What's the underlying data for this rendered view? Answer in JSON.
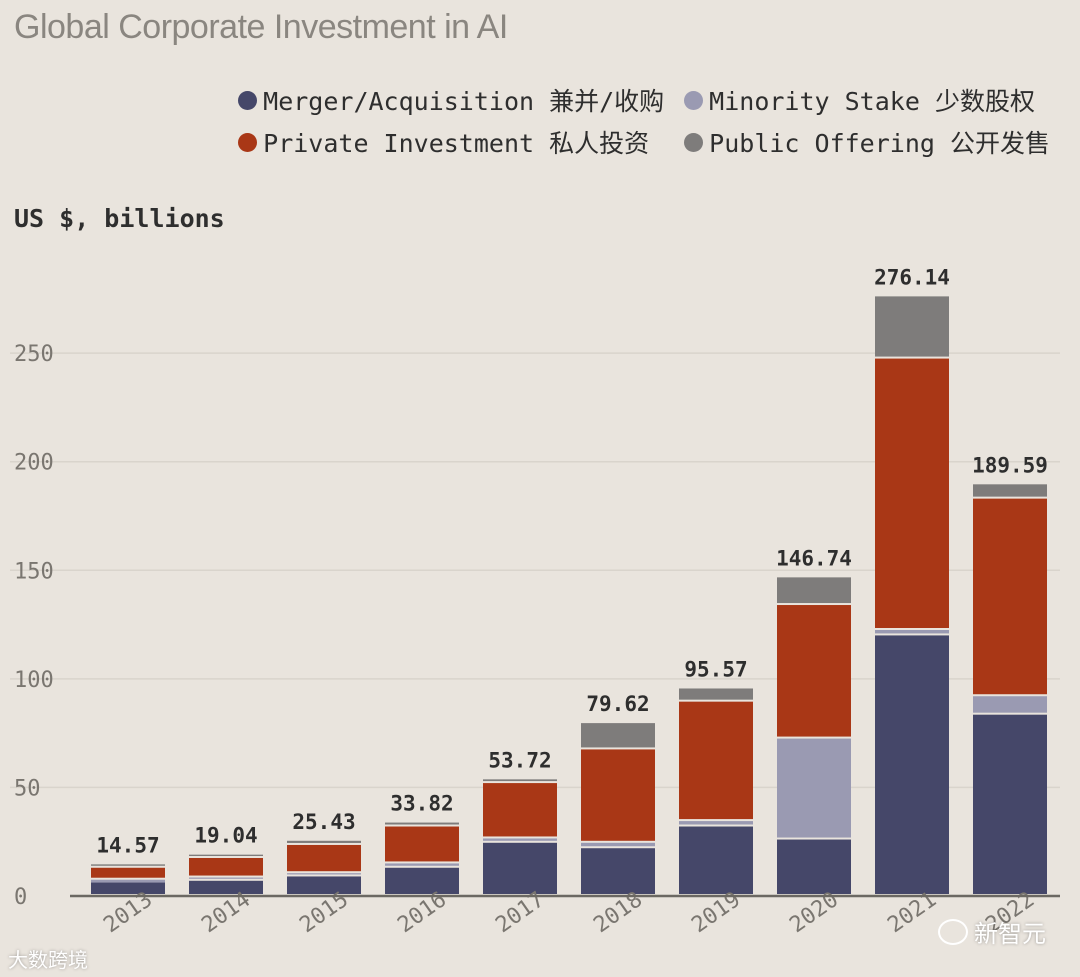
{
  "chart_data": {
    "type": "bar",
    "stacked": true,
    "title": "Global Corporate Investment in AI",
    "ylabel": "US $, billions",
    "xlabel": "",
    "ylim": [
      0,
      280
    ],
    "yticks": [
      0,
      50,
      100,
      150,
      200,
      250
    ],
    "categories": [
      "2013",
      "2014",
      "2015",
      "2016",
      "2017",
      "2018",
      "2019",
      "2020",
      "2021",
      "2022"
    ],
    "totals": [
      14.57,
      19.04,
      25.43,
      33.82,
      53.72,
      79.62,
      95.57,
      146.74,
      276.14,
      189.59
    ],
    "totals_labels": [
      "14.57",
      "19.04",
      "25.43",
      "33.82",
      "53.72",
      "79.62",
      "95.57",
      "146.74",
      "276.14",
      "189.59"
    ],
    "series": [
      {
        "name": "Merger/Acquisition 兼并/收购",
        "color": "#454769",
        "values": [
          6.2,
          7.0,
          9.0,
          13.0,
          24.5,
          22.0,
          32.0,
          26.0,
          120.0,
          83.5
        ]
      },
      {
        "name": "Minority Stake 少数股权",
        "color": "#9a9ab2",
        "values": [
          1.3,
          1.5,
          1.5,
          2.0,
          2.0,
          2.5,
          2.5,
          46.5,
          2.5,
          8.5
        ]
      },
      {
        "name": "Private Investment 私人投资",
        "color": "#a93716",
        "values": [
          5.5,
          9.0,
          13.0,
          17.0,
          25.5,
          43.0,
          55.0,
          61.5,
          125.0,
          91.0
        ]
      },
      {
        "name": "Public Offering 公开发售",
        "color": "#7e7c7b",
        "values": [
          1.57,
          1.54,
          1.93,
          1.82,
          1.72,
          12.12,
          6.07,
          12.74,
          28.64,
          6.59
        ]
      }
    ]
  },
  "legend": [
    {
      "label": "Merger/Acquisition 兼并/收购",
      "color": "#454769"
    },
    {
      "label": "Minority Stake 少数股权",
      "color": "#9a9ab2"
    },
    {
      "label": "Private Investment 私人投资",
      "color": "#a93716"
    },
    {
      "label": "Public Offering 公开发售",
      "color": "#7e7c7b"
    }
  ],
  "watermarks": {
    "left": "大数跨境",
    "right": "新智元"
  }
}
